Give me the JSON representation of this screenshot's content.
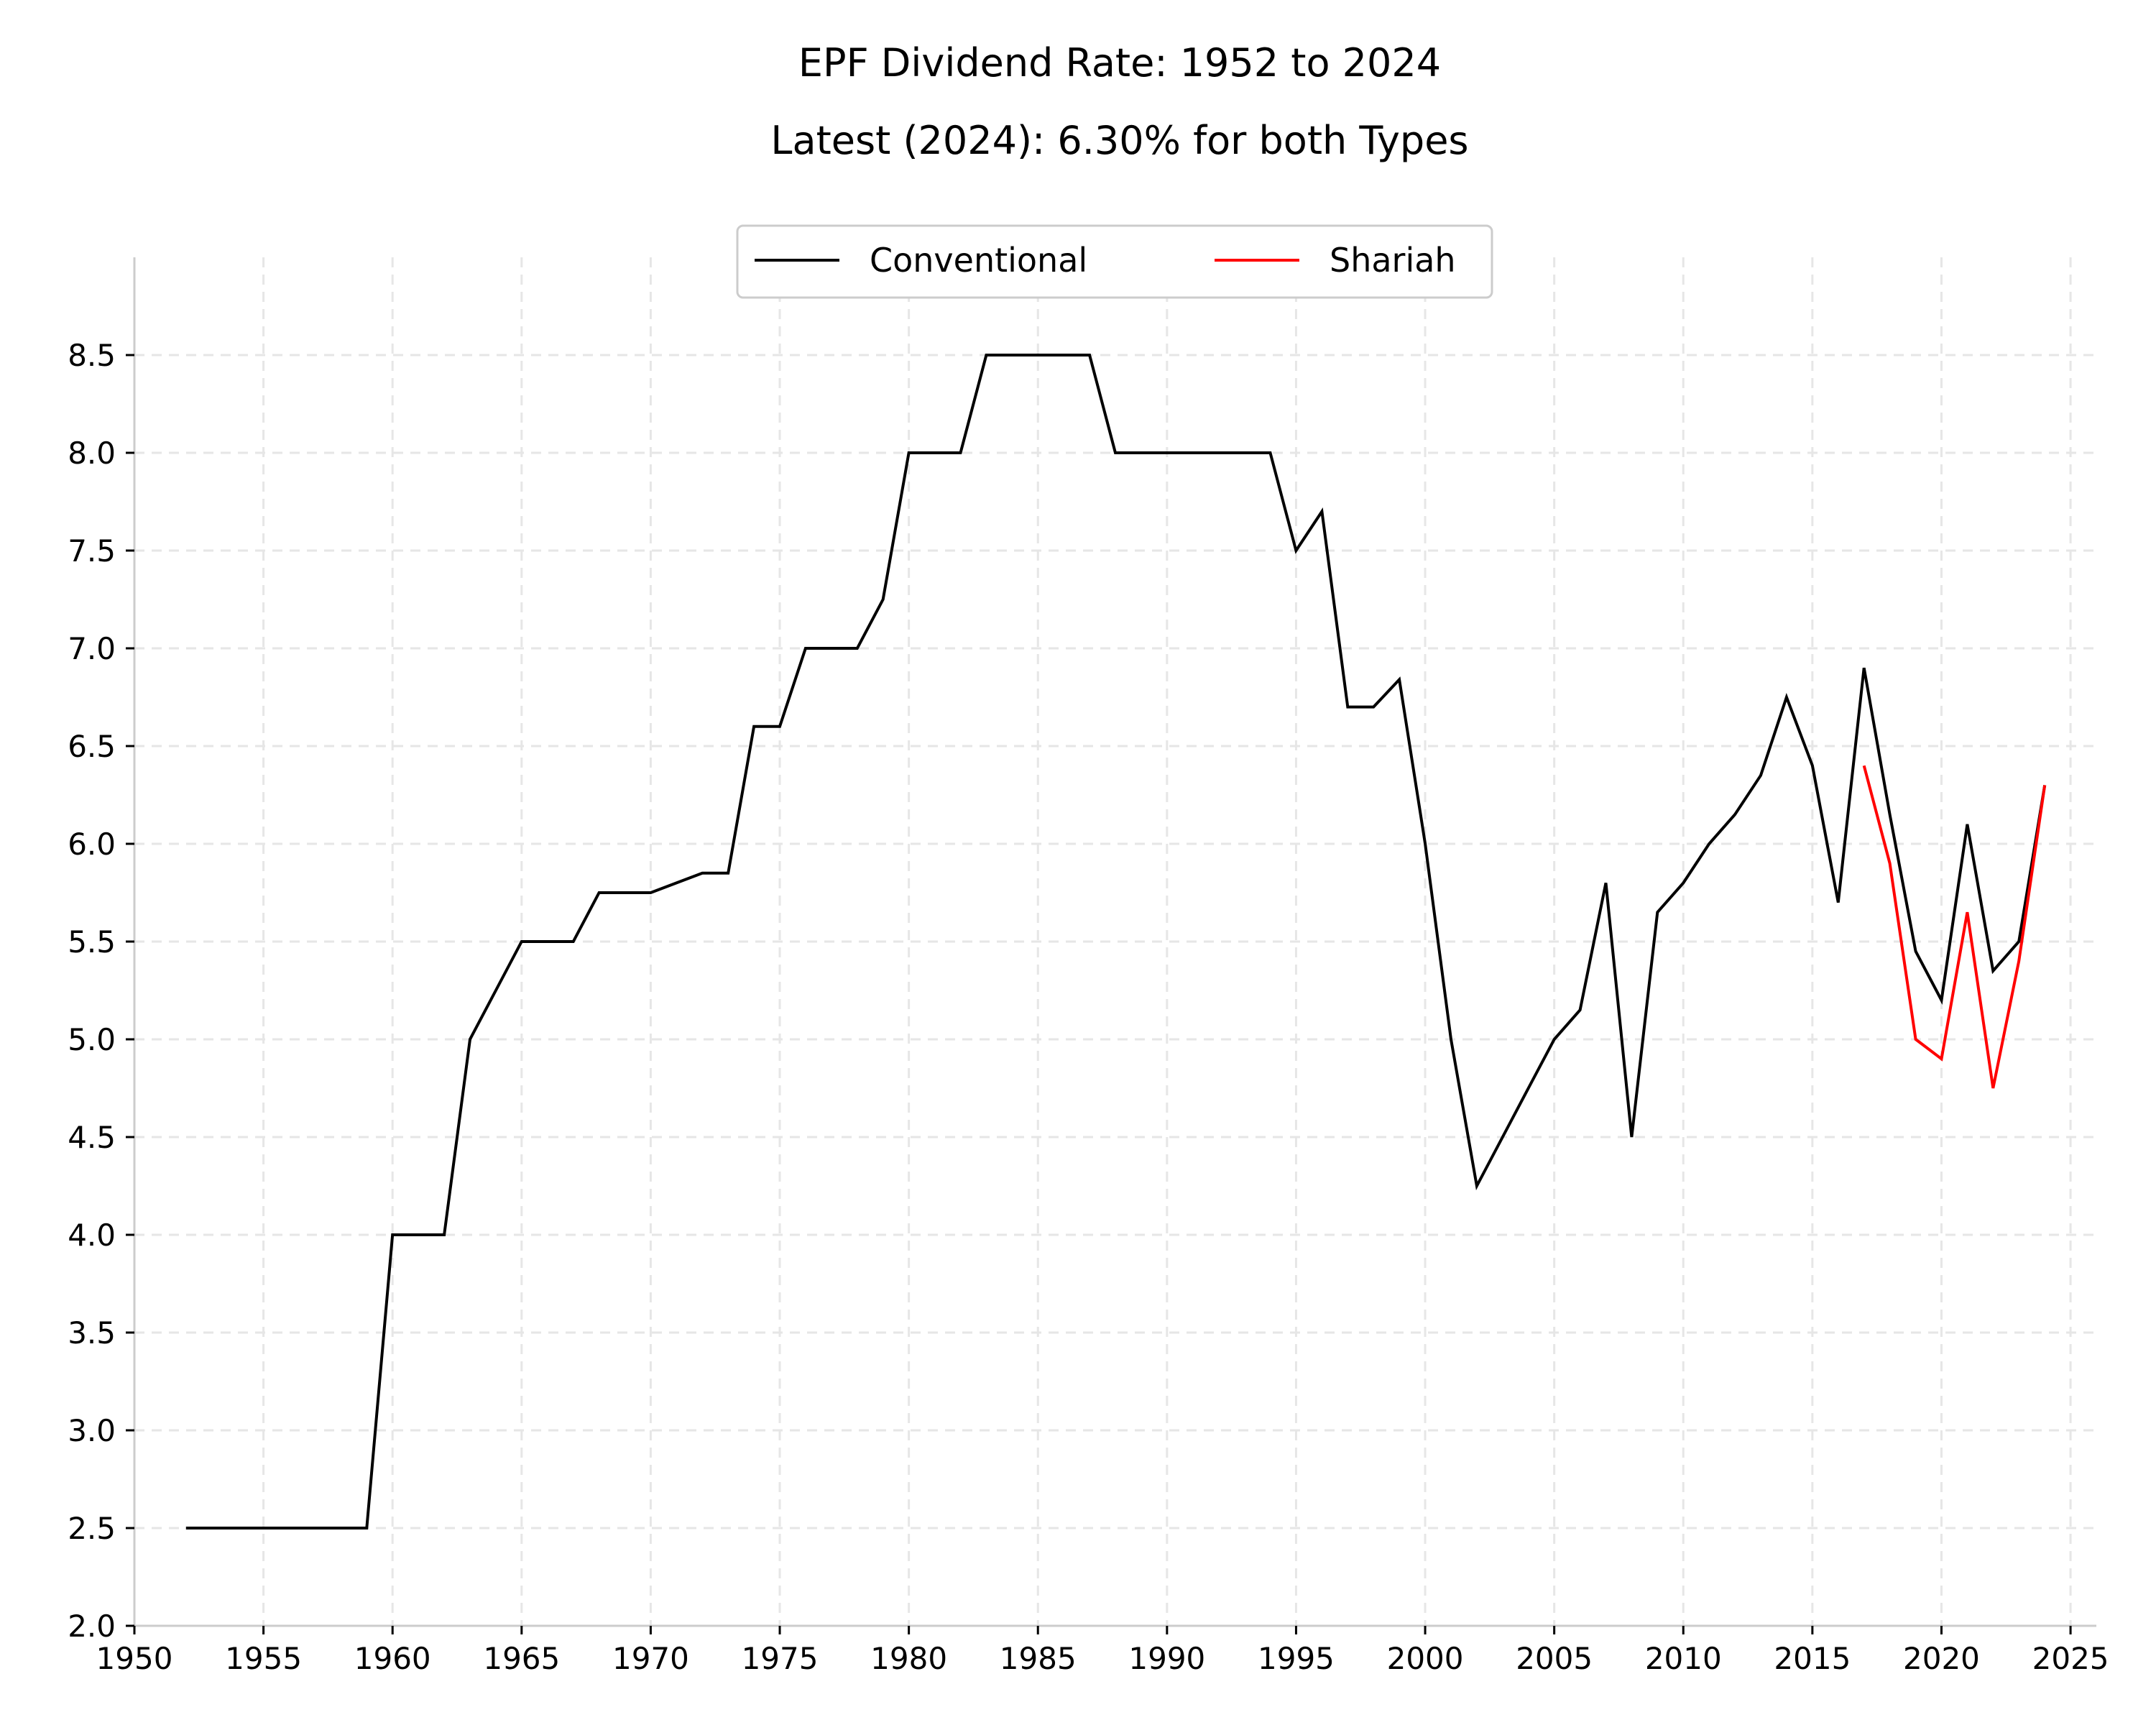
{
  "chart_data": {
    "type": "line",
    "title": "EPF Dividend Rate: 1952 to 2024",
    "subtitle": "Latest (2024): 6.30% for both Types",
    "xlabel": "",
    "ylabel": "",
    "xlim": [
      1950,
      2026
    ],
    "ylim": [
      2.0,
      9.0
    ],
    "x_ticks": [
      1950,
      1955,
      1960,
      1965,
      1970,
      1975,
      1980,
      1985,
      1990,
      1995,
      2000,
      2005,
      2010,
      2015,
      2020,
      2025
    ],
    "y_ticks": [
      2.0,
      2.5,
      3.0,
      3.5,
      4.0,
      4.5,
      5.0,
      5.5,
      6.0,
      6.5,
      7.0,
      7.5,
      8.0,
      8.5
    ],
    "y_tick_labels": [
      "2.0",
      "2.5",
      "3.0",
      "3.5",
      "4.0",
      "4.5",
      "5.0",
      "5.5",
      "6.0",
      "6.5",
      "7.0",
      "7.5",
      "8.0",
      "8.5"
    ],
    "grid": true,
    "legend_position": "top-center",
    "series": [
      {
        "name": "Conventional",
        "color": "#000000",
        "x": [
          1952,
          1953,
          1954,
          1955,
          1956,
          1957,
          1958,
          1959,
          1960,
          1961,
          1962,
          1963,
          1964,
          1965,
          1966,
          1967,
          1968,
          1969,
          1970,
          1971,
          1972,
          1973,
          1974,
          1975,
          1976,
          1977,
          1978,
          1979,
          1980,
          1981,
          1982,
          1983,
          1984,
          1985,
          1986,
          1987,
          1988,
          1989,
          1990,
          1991,
          1992,
          1993,
          1994,
          1995,
          1996,
          1997,
          1998,
          1999,
          2000,
          2001,
          2002,
          2003,
          2004,
          2005,
          2006,
          2007,
          2008,
          2009,
          2010,
          2011,
          2012,
          2013,
          2014,
          2015,
          2016,
          2017,
          2018,
          2019,
          2020,
          2021,
          2022,
          2023,
          2024
        ],
        "values": [
          2.5,
          2.5,
          2.5,
          2.5,
          2.5,
          2.5,
          2.5,
          2.5,
          4.0,
          4.0,
          4.0,
          5.0,
          5.25,
          5.5,
          5.5,
          5.5,
          5.75,
          5.75,
          5.75,
          5.8,
          5.85,
          5.85,
          6.6,
          6.6,
          7.0,
          7.0,
          7.0,
          7.25,
          8.0,
          8.0,
          8.0,
          8.5,
          8.5,
          8.5,
          8.5,
          8.5,
          8.0,
          8.0,
          8.0,
          8.0,
          8.0,
          8.0,
          8.0,
          7.5,
          7.7,
          6.7,
          6.7,
          6.84,
          6.0,
          5.0,
          4.25,
          4.5,
          4.75,
          5.0,
          5.15,
          5.8,
          4.5,
          5.65,
          5.8,
          6.0,
          6.15,
          6.35,
          6.75,
          6.4,
          5.7,
          6.9,
          6.15,
          5.45,
          5.2,
          6.1,
          5.35,
          5.5,
          6.3
        ]
      },
      {
        "name": "Shariah",
        "color": "#ff0000",
        "x": [
          2017,
          2018,
          2019,
          2020,
          2021,
          2022,
          2023,
          2024
        ],
        "values": [
          6.4,
          5.9,
          5.0,
          4.9,
          5.65,
          4.75,
          5.4,
          6.3
        ]
      }
    ]
  }
}
